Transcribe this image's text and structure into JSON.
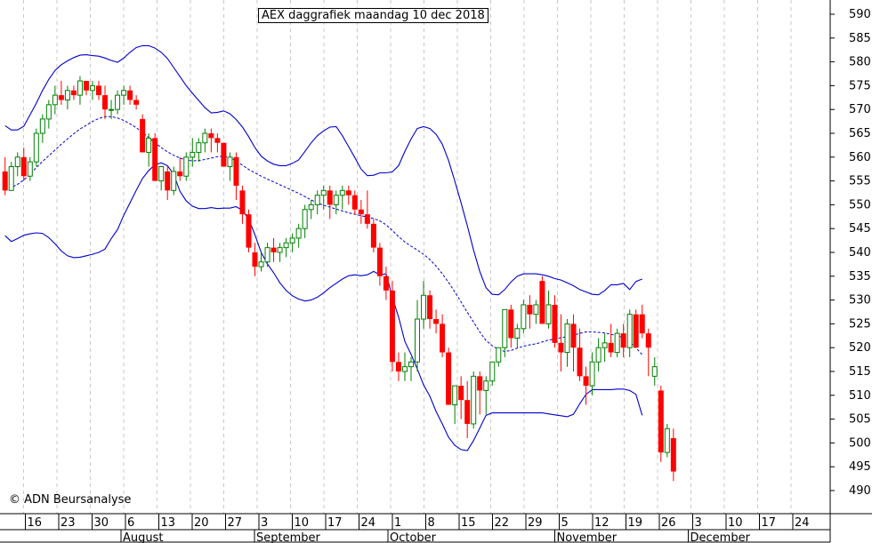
{
  "chart_data": {
    "type": "candlestick",
    "title": "AEX daggrafiek maandag 10 dec 2018",
    "copyright": "© ADN Beursanalyse",
    "y_axis": {
      "ticks": [
        490,
        495,
        500,
        505,
        510,
        515,
        520,
        525,
        530,
        535,
        540,
        545,
        550,
        555,
        560,
        565,
        570,
        575,
        580,
        585,
        590
      ],
      "ylim": [
        486,
        592
      ]
    },
    "x_axis": {
      "day_ticks": [
        "16",
        "23",
        "30",
        "6",
        "13",
        "20",
        "27",
        "3",
        "10",
        "17",
        "24",
        "1",
        "8",
        "15",
        "22",
        "29",
        "5",
        "12",
        "19",
        "26",
        "3",
        "10",
        "17",
        "24"
      ],
      "months": [
        "August",
        "September",
        "October",
        "November",
        "December"
      ]
    },
    "colors": {
      "up_fill": "#ffffff",
      "up_outline": "#008000",
      "down": "#ff0000",
      "band": "#0000cc",
      "grid": "#c8c8c8"
    },
    "candles": [
      [
        557,
        560,
        552,
        553
      ],
      [
        553,
        559,
        553,
        558
      ],
      [
        558,
        561,
        556,
        560
      ],
      [
        560,
        562,
        555,
        556
      ],
      [
        556,
        560,
        555,
        559
      ],
      [
        559,
        566,
        558,
        565
      ],
      [
        565,
        569,
        563,
        568
      ],
      [
        568,
        572,
        566,
        571
      ],
      [
        571,
        575,
        569,
        573
      ],
      [
        573,
        576,
        571,
        572
      ],
      [
        572,
        575,
        570,
        574
      ],
      [
        574,
        575,
        572,
        573
      ],
      [
        573,
        577,
        571,
        576
      ],
      [
        576,
        576,
        573,
        574
      ],
      [
        574,
        576,
        572,
        575
      ],
      [
        575,
        576,
        572,
        573
      ],
      [
        573,
        575,
        568,
        570
      ],
      [
        570,
        572,
        568,
        570
      ],
      [
        570,
        574,
        569,
        573
      ],
      [
        573,
        575,
        571,
        574
      ],
      [
        574,
        575,
        571,
        572
      ],
      [
        572,
        573,
        570,
        571
      ],
      [
        568,
        569,
        562,
        561
      ],
      [
        561,
        565,
        558,
        564
      ],
      [
        564,
        565,
        555,
        555
      ],
      [
        555,
        558,
        553,
        558
      ],
      [
        557,
        558,
        551,
        553
      ],
      [
        553,
        558,
        552,
        557
      ],
      [
        557,
        560,
        555,
        556
      ],
      [
        556,
        561,
        555,
        560
      ],
      [
        560,
        564,
        558,
        561
      ],
      [
        561,
        564,
        559,
        563
      ],
      [
        563,
        566,
        561,
        565
      ],
      [
        565,
        566,
        561,
        564
      ],
      [
        564,
        565,
        561,
        563
      ],
      [
        563,
        563,
        558,
        558
      ],
      [
        558,
        561,
        555,
        560
      ],
      [
        560,
        561,
        551,
        554
      ],
      [
        553,
        554,
        546,
        548
      ],
      [
        548,
        549,
        540,
        541
      ],
      [
        540,
        542,
        535,
        537
      ],
      [
        537,
        540,
        536,
        538
      ],
      [
        538,
        542,
        537,
        541
      ],
      [
        541,
        543,
        538,
        540
      ],
      [
        540,
        542,
        538,
        541
      ],
      [
        541,
        543,
        539,
        542
      ],
      [
        542,
        544,
        540,
        543
      ],
      [
        543,
        546,
        541,
        545
      ],
      [
        545,
        550,
        543,
        549
      ],
      [
        549,
        551,
        547,
        550
      ],
      [
        550,
        553,
        548,
        552
      ],
      [
        552,
        554,
        549,
        553
      ],
      [
        553,
        554,
        547,
        550
      ],
      [
        550,
        553,
        548,
        552
      ],
      [
        552,
        554,
        549,
        553
      ],
      [
        553,
        554,
        550,
        552
      ],
      [
        552,
        553,
        548,
        549
      ],
      [
        549,
        551,
        546,
        548
      ],
      [
        548,
        553,
        545,
        546
      ],
      [
        546,
        547,
        540,
        541
      ],
      [
        541,
        542,
        533,
        535
      ],
      [
        535,
        537,
        530,
        532
      ],
      [
        532,
        534,
        515,
        517
      ],
      [
        517,
        519,
        513,
        515
      ],
      [
        515,
        519,
        513,
        516
      ],
      [
        516,
        518,
        513,
        517
      ],
      [
        517,
        530,
        515,
        526
      ],
      [
        526,
        534,
        524,
        531
      ],
      [
        531,
        532,
        524,
        526
      ],
      [
        526,
        528,
        523,
        525
      ],
      [
        525,
        527,
        518,
        519
      ],
      [
        519,
        520,
        508,
        508
      ],
      [
        508,
        511,
        504,
        512
      ],
      [
        512,
        514,
        505,
        509
      ],
      [
        509,
        513,
        501,
        504
      ],
      [
        504,
        515,
        503,
        514
      ],
      [
        514,
        515,
        506,
        511
      ],
      [
        511,
        514,
        506,
        513
      ],
      [
        513,
        517,
        512,
        517
      ],
      [
        517,
        520,
        516,
        520
      ],
      [
        520,
        528,
        518,
        528
      ],
      [
        528,
        529,
        520,
        522
      ],
      [
        522,
        525,
        520,
        524
      ],
      [
        524,
        530,
        523,
        529
      ],
      [
        529,
        531,
        524,
        527
      ],
      [
        527,
        530,
        525,
        529
      ],
      [
        534,
        535,
        525,
        525
      ],
      [
        525,
        532,
        524,
        529
      ],
      [
        529,
        531,
        520,
        521
      ],
      [
        521,
        527,
        515,
        519
      ],
      [
        519,
        526,
        516,
        525
      ],
      [
        525,
        527,
        515,
        520
      ],
      [
        520,
        524,
        513,
        514
      ],
      [
        514,
        516,
        508,
        512
      ],
      [
        512,
        519,
        510,
        517
      ],
      [
        517,
        522,
        515,
        520
      ],
      [
        520,
        523,
        517,
        521
      ],
      [
        521,
        525,
        518,
        519
      ],
      [
        519,
        524,
        518,
        523
      ],
      [
        523,
        525,
        518,
        520
      ],
      [
        520,
        528,
        518,
        527
      ],
      [
        527,
        528,
        520,
        520
      ],
      [
        527,
        529,
        522,
        523
      ],
      [
        523,
        524,
        514,
        520
      ],
      [
        514,
        518,
        512,
        516
      ],
      [
        511,
        512,
        496,
        498
      ],
      [
        498,
        504,
        497,
        503
      ],
      [
        501,
        503,
        492,
        494
      ]
    ],
    "sma": [
      553,
      553.6,
      554.3,
      555.2,
      556.4,
      557.8,
      559.1,
      560.3,
      561.5,
      562.7,
      563.8,
      564.9,
      565.9,
      566.7,
      567.5,
      568.1,
      568.5,
      568.5,
      568.2,
      567.7,
      567,
      566.2,
      565.2,
      564.1,
      563,
      562,
      561.1,
      560.4,
      559.8,
      559.4,
      559.2,
      559.3,
      559.5,
      559.8,
      560.1,
      560.2,
      559.9,
      559.2,
      558.3,
      557.4,
      556.7,
      556,
      555.4,
      554.8,
      554.2,
      553.6,
      553,
      552.4,
      551.7,
      551,
      550.4,
      549.9,
      549.5,
      549.1,
      548.7,
      548.3,
      548,
      547.7,
      547.4,
      547.1,
      546.6,
      545.8,
      544.6,
      543.3,
      542.2,
      541.3,
      540.5,
      539.6,
      538.5,
      537.1,
      535.5,
      533.7,
      531.7,
      529.6,
      527.4,
      525.4,
      523.3,
      521.5,
      520.4,
      519.6,
      519.2,
      519.4,
      519.9,
      520.3,
      520.6,
      520.8,
      521.2,
      521.6,
      521.8,
      522.1,
      522.3,
      522.6,
      523,
      523.3,
      523.3,
      523.2,
      523.1,
      522.8,
      522.5,
      522.1,
      521.2,
      520,
      518.5
    ],
    "upper_band": [
      566.6,
      565.7,
      565.7,
      566.5,
      568.9,
      571.3,
      574,
      576.3,
      578.2,
      579.4,
      580.2,
      580.9,
      581.4,
      581.5,
      581.3,
      581.2,
      580.8,
      580.3,
      579.9,
      580.8,
      582,
      583,
      583.4,
      583.4,
      582.9,
      582,
      580.7,
      578.8,
      576.9,
      575,
      573.4,
      571.9,
      570.4,
      569.3,
      569.4,
      569.7,
      569.1,
      567.9,
      566.3,
      564.3,
      562,
      560.2,
      559.2,
      558.5,
      558.2,
      558.2,
      558.7,
      559.4,
      561.2,
      563,
      564.5,
      565.5,
      566.3,
      566.4,
      564.5,
      562.2,
      559.9,
      557.5,
      556.1,
      556.2,
      556.7,
      556.7,
      556.9,
      558.2,
      561.2,
      563.8,
      566,
      566.4,
      566,
      564.8,
      562.7,
      559.3,
      555,
      550.4,
      545.6,
      540.5,
      536,
      532.6,
      531.2,
      531.1,
      532.2,
      533.8,
      535,
      535.5,
      535.5,
      535.5,
      535.3,
      535,
      534.5,
      534.2,
      533.6,
      533,
      532.2,
      531.7,
      531.2,
      531.1,
      532,
      533.2,
      533.2,
      533.5,
      532.2,
      533.9,
      534.4
    ],
    "lower_band": [
      543.5,
      542.3,
      542.9,
      543.6,
      543.9,
      544.1,
      544,
      543.1,
      541.8,
      540.3,
      539.3,
      538.9,
      539,
      539.3,
      539.6,
      540,
      540.7,
      542.9,
      544.8,
      547.8,
      550.4,
      553,
      555.5,
      557.2,
      558.4,
      558.8,
      558.2,
      556.4,
      552.8,
      550.8,
      549.7,
      549.2,
      549.2,
      549.4,
      549.2,
      549.3,
      549.3,
      549.6,
      548.8,
      547,
      543.7,
      540,
      537.6,
      535.7,
      533.6,
      532,
      530.9,
      530.2,
      529.8,
      530,
      530.6,
      531.5,
      532.6,
      533.5,
      534.4,
      535.1,
      535.3,
      535.1,
      535.3,
      536,
      535.3,
      535.5,
      530.6,
      526.4,
      521.3,
      518.6,
      515.5,
      512.2,
      509.8,
      506.6,
      504,
      501.2,
      499.5,
      498.6,
      498.4,
      500.5,
      503.1,
      505.8,
      506.3,
      506.3,
      506.3,
      506.3,
      506.3,
      506.3,
      506.3,
      506.3,
      506.3,
      506.1,
      505.9,
      505.7,
      505.5,
      506,
      508.2,
      510.2,
      511.2,
      511.2,
      511.2,
      511.2,
      511.3,
      511.3,
      511,
      510.2,
      505.8
    ]
  }
}
